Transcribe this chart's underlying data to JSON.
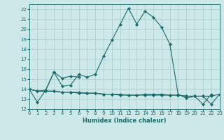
{
  "xlabel": "Humidex (Indice chaleur)",
  "background_color": "#cde8e8",
  "grid_color": "#aacccc",
  "line_color": "#1a6b6b",
  "xlim": [
    0,
    23
  ],
  "ylim": [
    12,
    22.5
  ],
  "yticks": [
    12,
    13,
    14,
    15,
    16,
    17,
    18,
    19,
    20,
    21,
    22
  ],
  "xticks": [
    0,
    1,
    2,
    3,
    4,
    5,
    6,
    7,
    8,
    9,
    10,
    11,
    12,
    13,
    14,
    15,
    16,
    17,
    18,
    19,
    20,
    21,
    22,
    23
  ],
  "line1_x": [
    0,
    1,
    2,
    3,
    4,
    5,
    6,
    7,
    8,
    9,
    10,
    11,
    12,
    13,
    14,
    15,
    16,
    17,
    18,
    19,
    20,
    21,
    22
  ],
  "line1_y": [
    14,
    12.7,
    13.9,
    15.7,
    14.3,
    14.4,
    15.5,
    15.2,
    15.5,
    17.3,
    18.9,
    20.5,
    22.1,
    20.5,
    21.8,
    21.2,
    20.2,
    18.5,
    13.5,
    13.1,
    13.3,
    12.5,
    13.5
  ],
  "line2_x": [
    0,
    1,
    2,
    3,
    4,
    5,
    6
  ],
  "line2_y": [
    14,
    13.8,
    13.9,
    15.7,
    15.1,
    15.3,
    15.2
  ],
  "line3_x": [
    0,
    1,
    2,
    3,
    4,
    5,
    6,
    7,
    8,
    9,
    10,
    11,
    12,
    13,
    14,
    15,
    16,
    17,
    18,
    19,
    20,
    21,
    22,
    23
  ],
  "line3_y": [
    14,
    13.8,
    13.8,
    13.8,
    13.7,
    13.7,
    13.7,
    13.6,
    13.6,
    13.5,
    13.5,
    13.4,
    13.4,
    13.4,
    13.4,
    13.4,
    13.4,
    13.4,
    13.4,
    13.3,
    13.3,
    13.3,
    13.3,
    13.5
  ],
  "line4_x": [
    0,
    1,
    2,
    3,
    4,
    5,
    6,
    7,
    8,
    9,
    10,
    11,
    12,
    13,
    14,
    15,
    16,
    17,
    18,
    19,
    20,
    21,
    22,
    23
  ],
  "line4_y": [
    14,
    13.8,
    13.8,
    13.8,
    13.7,
    13.7,
    13.6,
    13.6,
    13.6,
    13.5,
    13.5,
    13.5,
    13.4,
    13.4,
    13.5,
    13.5,
    13.5,
    13.4,
    13.4,
    13.3,
    13.3,
    13.3,
    12.5,
    13.5
  ]
}
